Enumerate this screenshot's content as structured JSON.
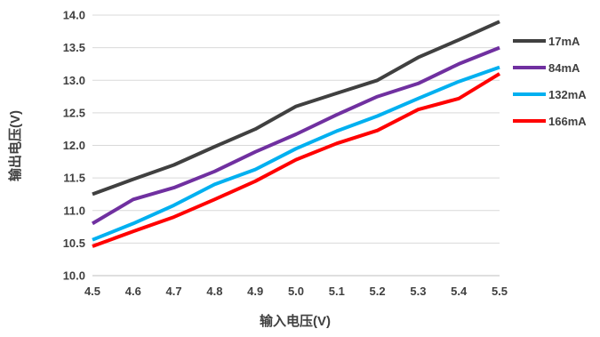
{
  "chart_data": {
    "type": "line",
    "xlabel": "输入电压(V)",
    "ylabel": "输出电压(V)",
    "xlim": [
      4.5,
      5.5
    ],
    "ylim": [
      10.0,
      14.0
    ],
    "x": [
      4.5,
      4.6,
      4.7,
      4.8,
      4.9,
      5.0,
      5.1,
      5.2,
      5.3,
      5.4,
      5.5
    ],
    "x_tick_labels": [
      "4.5",
      "4.6",
      "4.7",
      "4.8",
      "4.9",
      "5.0",
      "5.1",
      "5.2",
      "5.3",
      "5.4",
      "5.5"
    ],
    "y_ticks": [
      10.0,
      10.5,
      11.0,
      11.5,
      12.0,
      12.5,
      13.0,
      13.5,
      14.0
    ],
    "y_tick_labels": [
      "10.0",
      "10.5",
      "11.0",
      "11.5",
      "12.0",
      "12.5",
      "13.0",
      "13.5",
      "14.0"
    ],
    "grid": "horizontal",
    "legend_position": "right",
    "series": [
      {
        "name": "17mA",
        "color": "#404040",
        "values": [
          11.25,
          11.48,
          11.7,
          11.98,
          12.25,
          12.6,
          12.8,
          13.0,
          13.35,
          13.62,
          13.9
        ]
      },
      {
        "name": "84mA",
        "color": "#7030a0",
        "values": [
          10.8,
          11.17,
          11.35,
          11.6,
          11.9,
          12.17,
          12.47,
          12.75,
          12.95,
          13.25,
          13.5
        ]
      },
      {
        "name": "132mA",
        "color": "#00b0f0",
        "values": [
          10.55,
          10.8,
          11.08,
          11.4,
          11.63,
          11.95,
          12.22,
          12.45,
          12.72,
          12.98,
          13.2
        ]
      },
      {
        "name": "166mA",
        "color": "#ff0000",
        "values": [
          10.45,
          10.68,
          10.9,
          11.17,
          11.45,
          11.78,
          12.03,
          12.23,
          12.55,
          12.72,
          13.1
        ]
      }
    ]
  }
}
